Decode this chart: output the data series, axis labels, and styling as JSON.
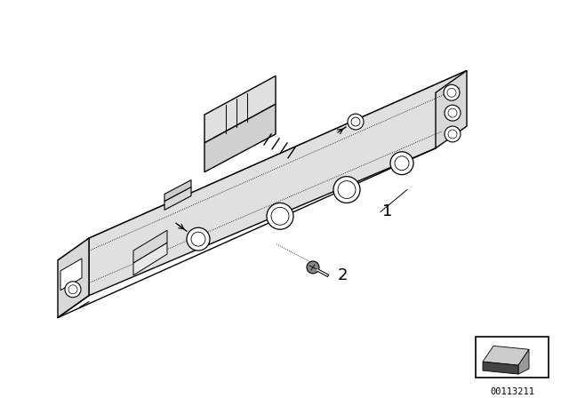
{
  "background_color": "#ffffff",
  "line_color": "#000000",
  "label_1": "1",
  "label_2": "2",
  "diagram_id": "00113211",
  "fig_width": 6.4,
  "fig_height": 4.48,
  "dpi": 100,
  "unit_color_top": "#f2f2f2",
  "unit_color_front": "#e0e0e0",
  "unit_color_left": "#ebebeb",
  "unit_color_right_end": "#d8d8d8"
}
